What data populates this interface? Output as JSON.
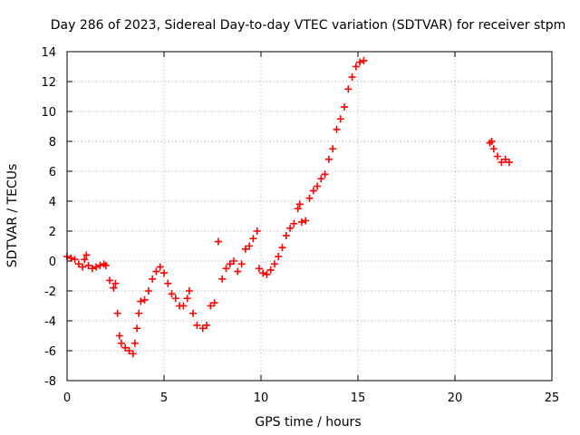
{
  "chart_data": {
    "type": "scatter",
    "title": "Day 286 of 2023, Sidereal Day-to-day VTEC variation (SDTVAR) for receiver stpm",
    "xlabel": "GPS time / hours",
    "ylabel": "SDTVAR / TECUs",
    "xlim": [
      0,
      25
    ],
    "ylim": [
      -8,
      14
    ],
    "xticks": [
      0,
      5,
      10,
      15,
      20,
      25
    ],
    "yticks": [
      -8,
      -6,
      -4,
      -2,
      0,
      2,
      4,
      6,
      8,
      10,
      12,
      14
    ],
    "xtick_labels": [
      "0",
      "5",
      "10",
      "15",
      "20",
      "25"
    ],
    "ytick_labels": [
      "-8",
      "-6",
      "-4",
      "-2",
      "0",
      "2",
      "4",
      "6",
      "8",
      "10",
      "12",
      "14"
    ],
    "grid": true,
    "marker": "+",
    "color": "#ff0000",
    "series": [
      {
        "name": "stpm",
        "points": [
          [
            0.0,
            0.3
          ],
          [
            0.2,
            0.2
          ],
          [
            0.4,
            0.1
          ],
          [
            0.6,
            -0.2
          ],
          [
            0.8,
            -0.4
          ],
          [
            0.9,
            0.1
          ],
          [
            1.0,
            0.4
          ],
          [
            1.1,
            -0.3
          ],
          [
            1.3,
            -0.5
          ],
          [
            1.5,
            -0.4
          ],
          [
            1.7,
            -0.3
          ],
          [
            1.9,
            -0.2
          ],
          [
            2.0,
            -0.3
          ],
          [
            2.2,
            -1.3
          ],
          [
            2.4,
            -1.8
          ],
          [
            2.5,
            -1.5
          ],
          [
            2.6,
            -3.5
          ],
          [
            2.7,
            -5.0
          ],
          [
            2.8,
            -5.5
          ],
          [
            3.0,
            -5.8
          ],
          [
            3.2,
            -6.0
          ],
          [
            3.4,
            -6.2
          ],
          [
            3.5,
            -5.5
          ],
          [
            3.6,
            -4.5
          ],
          [
            3.7,
            -3.5
          ],
          [
            3.8,
            -2.7
          ],
          [
            4.0,
            -2.6
          ],
          [
            4.2,
            -2.0
          ],
          [
            4.4,
            -1.2
          ],
          [
            4.6,
            -0.7
          ],
          [
            4.8,
            -0.4
          ],
          [
            5.0,
            -0.8
          ],
          [
            5.2,
            -1.5
          ],
          [
            5.4,
            -2.2
          ],
          [
            5.6,
            -2.5
          ],
          [
            5.8,
            -3.0
          ],
          [
            6.0,
            -3.0
          ],
          [
            6.2,
            -2.5
          ],
          [
            6.3,
            -2.0
          ],
          [
            6.5,
            -3.5
          ],
          [
            6.7,
            -4.3
          ],
          [
            7.0,
            -4.5
          ],
          [
            7.2,
            -4.3
          ],
          [
            7.4,
            -3.0
          ],
          [
            7.6,
            -2.8
          ],
          [
            7.8,
            1.3
          ],
          [
            8.0,
            -1.2
          ],
          [
            8.2,
            -0.5
          ],
          [
            8.4,
            -0.2
          ],
          [
            8.6,
            0.0
          ],
          [
            8.8,
            -0.7
          ],
          [
            9.0,
            -0.2
          ],
          [
            9.2,
            0.8
          ],
          [
            9.4,
            1.0
          ],
          [
            9.6,
            1.5
          ],
          [
            9.8,
            2.0
          ],
          [
            9.9,
            -0.5
          ],
          [
            10.1,
            -0.8
          ],
          [
            10.3,
            -0.9
          ],
          [
            10.5,
            -0.6
          ],
          [
            10.7,
            -0.2
          ],
          [
            10.9,
            0.3
          ],
          [
            11.1,
            0.9
          ],
          [
            11.3,
            1.7
          ],
          [
            11.5,
            2.2
          ],
          [
            11.7,
            2.5
          ],
          [
            11.9,
            3.5
          ],
          [
            12.0,
            3.8
          ],
          [
            12.1,
            2.6
          ],
          [
            12.3,
            2.7
          ],
          [
            12.5,
            4.2
          ],
          [
            12.7,
            4.7
          ],
          [
            12.9,
            5.0
          ],
          [
            13.1,
            5.5
          ],
          [
            13.3,
            5.8
          ],
          [
            13.5,
            6.8
          ],
          [
            13.7,
            7.5
          ],
          [
            13.9,
            8.8
          ],
          [
            14.1,
            9.5
          ],
          [
            14.3,
            10.3
          ],
          [
            14.5,
            11.5
          ],
          [
            14.7,
            12.3
          ],
          [
            14.9,
            13.0
          ],
          [
            15.1,
            13.3
          ],
          [
            15.3,
            13.4
          ],
          [
            21.8,
            7.9
          ],
          [
            21.9,
            8.0
          ],
          [
            22.0,
            7.5
          ],
          [
            22.2,
            7.0
          ],
          [
            22.4,
            6.6
          ],
          [
            22.6,
            6.8
          ],
          [
            22.8,
            6.6
          ]
        ]
      }
    ]
  }
}
